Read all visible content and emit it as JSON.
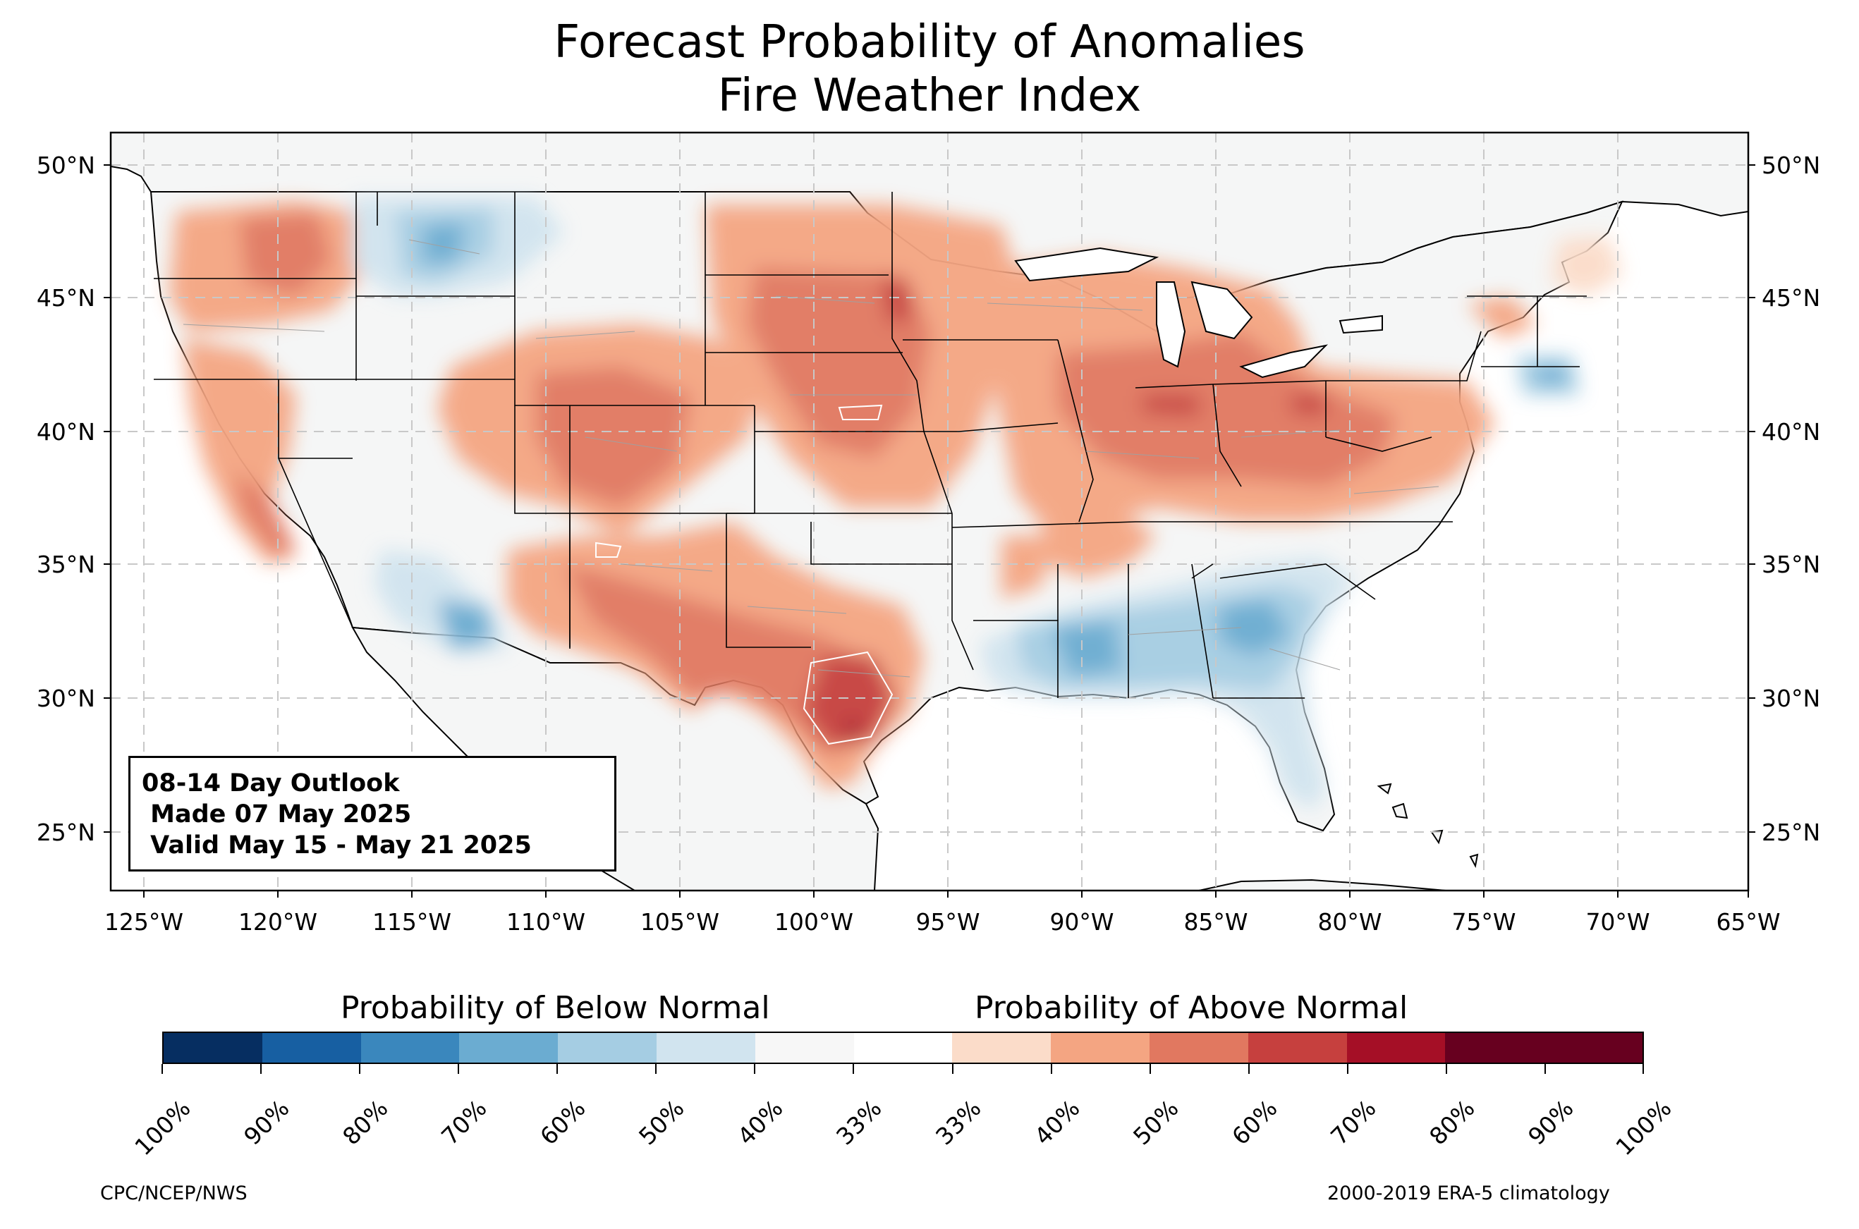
{
  "title": {
    "line1": "Forecast Probability of Anomalies",
    "line2": "Fire Weather Index"
  },
  "map": {
    "region": "Contiguous United States",
    "lat_ticks": [
      "25°N",
      "30°N",
      "35°N",
      "40°N",
      "45°N",
      "50°N"
    ],
    "lon_ticks": [
      "125°W",
      "120°W",
      "115°W",
      "110°W",
      "105°W",
      "100°W",
      "95°W",
      "90°W",
      "85°W",
      "80°W",
      "75°W",
      "70°W",
      "65°W"
    ],
    "lon_range": [
      -126.25,
      -64.75
    ],
    "lat_range": [
      22.8,
      51.2
    ],
    "gridlines": true,
    "land_color": "#f5f6f6",
    "ocean_color": "#ffffff"
  },
  "outlook": {
    "line1": "08-14 Day Outlook",
    "line2": " Made 07 May 2025",
    "line3": " Valid May 15 - May 21 2025"
  },
  "legend": {
    "below_title": "Probability of Below Normal",
    "above_title": "Probability of Above Normal",
    "tick_labels": [
      "100%",
      "90%",
      "80%",
      "70%",
      "60%",
      "50%",
      "40%",
      "33%",
      "33%",
      "40%",
      "50%",
      "60%",
      "70%",
      "80%",
      "90%",
      "100%"
    ],
    "colors": [
      "#062e61",
      "#175fa2",
      "#3a87bd",
      "#6bacd1",
      "#a5cde3",
      "#d1e4ef",
      "#f7f7f7",
      "#fbdcc9",
      "#f4a582",
      "#e17860",
      "#c6403e",
      "#a50f26",
      "#67001f"
    ]
  },
  "anomaly_regions": [
    {
      "name": "Pacific Northwest",
      "category": "above",
      "probability": "50-60%"
    },
    {
      "name": "Northern Rockies (Idaho/Montana)",
      "category": "below",
      "probability": "40-60%"
    },
    {
      "name": "Central Rockies and Colorado",
      "category": "above",
      "probability": "60-80%"
    },
    {
      "name": "Northern and Central Plains",
      "category": "above",
      "probability": "60-80%"
    },
    {
      "name": "Central and South Texas",
      "category": "above",
      "probability": "70-90%"
    },
    {
      "name": "Southern Arizona",
      "category": "below",
      "probability": "50-70%"
    },
    {
      "name": "Ohio Valley and Great Lakes",
      "category": "above",
      "probability": "60-80%"
    },
    {
      "name": "Southeast and Florida",
      "category": "below",
      "probability": "40-70%"
    },
    {
      "name": "Southern New England",
      "category": "below",
      "probability": "40-60%"
    }
  ],
  "footer": {
    "left": "CPC/NCEP/NWS",
    "right": "2000-2019 ERA-5 climatology"
  }
}
